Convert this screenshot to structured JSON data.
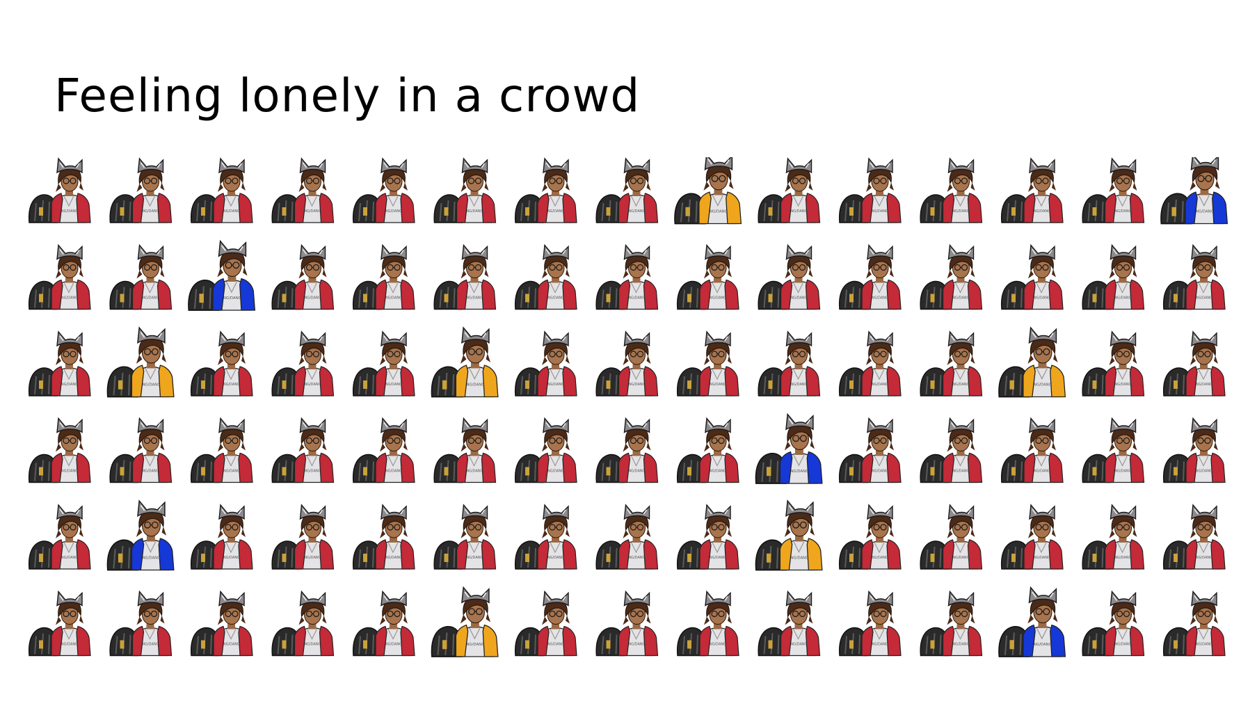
{
  "slide": {
    "title": "Feeling lonely in a crowd"
  },
  "crowd": {
    "rows": 6,
    "columns": 15,
    "default_jacket": "red",
    "figure_shirt_text": "SING/DANCE",
    "jacket_colors": {
      "red": "#c42a37",
      "yellow": "#efa61d",
      "blue": "#1538d6"
    },
    "highlights": [
      {
        "row": 0,
        "col": 8,
        "jacket": "yellow"
      },
      {
        "row": 0,
        "col": 14,
        "jacket": "blue"
      },
      {
        "row": 1,
        "col": 2,
        "jacket": "blue"
      },
      {
        "row": 2,
        "col": 1,
        "jacket": "yellow"
      },
      {
        "row": 2,
        "col": 5,
        "jacket": "yellow"
      },
      {
        "row": 2,
        "col": 12,
        "jacket": "yellow"
      },
      {
        "row": 3,
        "col": 9,
        "jacket": "blue"
      },
      {
        "row": 4,
        "col": 1,
        "jacket": "blue"
      },
      {
        "row": 4,
        "col": 9,
        "jacket": "yellow"
      },
      {
        "row": 5,
        "col": 5,
        "jacket": "yellow"
      },
      {
        "row": 5,
        "col": 12,
        "jacket": "blue"
      }
    ]
  }
}
